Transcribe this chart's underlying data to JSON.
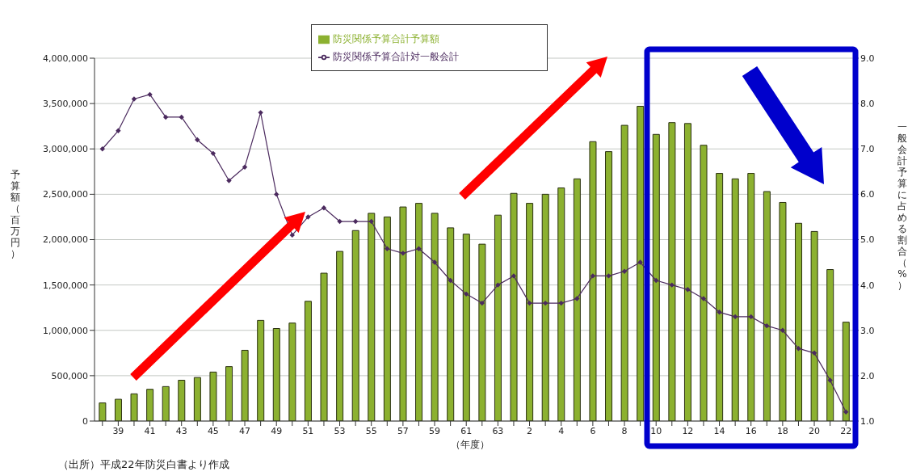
{
  "chart_data": {
    "type": "bar",
    "categories": [
      null,
      "39",
      null,
      "41",
      null,
      "43",
      null,
      "45",
      null,
      "47",
      null,
      "49",
      null,
      "51",
      null,
      "53",
      null,
      "55",
      null,
      "57",
      null,
      "59",
      null,
      "61",
      null,
      "63",
      null,
      "2",
      null,
      "4",
      null,
      "6",
      null,
      "8",
      null,
      "10",
      null,
      "12",
      null,
      "14",
      null,
      "16",
      null,
      "18",
      null,
      "20",
      null,
      "22"
    ],
    "series": [
      {
        "name": "防災関係予算合計予算額",
        "color": "#8cb130",
        "values": [
          200000,
          240000,
          300000,
          350000,
          380000,
          450000,
          480000,
          540000,
          600000,
          780000,
          1110000,
          1020000,
          1080000,
          1320000,
          1630000,
          1870000,
          2100000,
          2290000,
          2250000,
          2360000,
          2400000,
          2290000,
          2130000,
          2060000,
          1950000,
          2270000,
          2510000,
          2400000,
          2500000,
          2570000,
          2670000,
          3080000,
          2970000,
          3260000,
          3470000,
          3160000,
          3290000,
          3280000,
          3040000,
          2730000,
          2670000,
          2730000,
          2530000,
          2410000,
          2180000,
          2090000,
          1670000,
          1090000
        ]
      },
      {
        "name": "防災関係予算合計対一般会計",
        "type": "line",
        "axis": "y2",
        "color": "#4b2a5e",
        "values": [
          7.0,
          7.4,
          8.1,
          8.2,
          7.7,
          7.7,
          7.2,
          6.9,
          6.3,
          6.6,
          7.8,
          6.0,
          5.1,
          5.5,
          5.7,
          5.4,
          5.4,
          5.4,
          4.8,
          4.7,
          4.8,
          4.5,
          4.1,
          3.8,
          3.6,
          4.0,
          4.2,
          3.6,
          3.6,
          3.6,
          3.7,
          4.2,
          4.2,
          4.3,
          4.5,
          4.1,
          4.0,
          3.9,
          3.7,
          3.4,
          3.3,
          3.3,
          3.1,
          3.0,
          2.6,
          2.5,
          1.9,
          1.2
        ]
      }
    ],
    "xlabel": "（年度）",
    "ylabel": "予算額（百万円）",
    "y2label": "一般会計予算に占める割合（%）",
    "ylim": [
      0,
      4000000
    ],
    "yticks": [
      {
        "value": 0,
        "label": "0"
      },
      {
        "value": 500000,
        "label": "500,000"
      },
      {
        "value": 1000000,
        "label": "1,000,000"
      },
      {
        "value": 1500000,
        "label": "1,500,000"
      },
      {
        "value": 2000000,
        "label": "2,000,000"
      },
      {
        "value": 2500000,
        "label": "2,500,000"
      },
      {
        "value": 3000000,
        "label": "3,000,000"
      },
      {
        "value": 3500000,
        "label": "3,500,000"
      },
      {
        "value": 4000000,
        "label": "4,000,000"
      }
    ],
    "y2lim": [
      1,
      9
    ],
    "y2ticks": [
      {
        "value": 1,
        "label": "1.0"
      },
      {
        "value": 2,
        "label": "2.0"
      },
      {
        "value": 3,
        "label": "3.0"
      },
      {
        "value": 4,
        "label": "4.0"
      },
      {
        "value": 5,
        "label": "5.0"
      },
      {
        "value": 6,
        "label": "6.0"
      },
      {
        "value": 7,
        "label": "7.0"
      },
      {
        "value": 8,
        "label": "8.0"
      },
      {
        "value": 9,
        "label": "9.0"
      }
    ],
    "grid": "y",
    "legend": "top",
    "marker": "diamond",
    "line_style": "solid",
    "annotations": [
      "（出所）平成22年防災白書より作成"
    ]
  }
}
